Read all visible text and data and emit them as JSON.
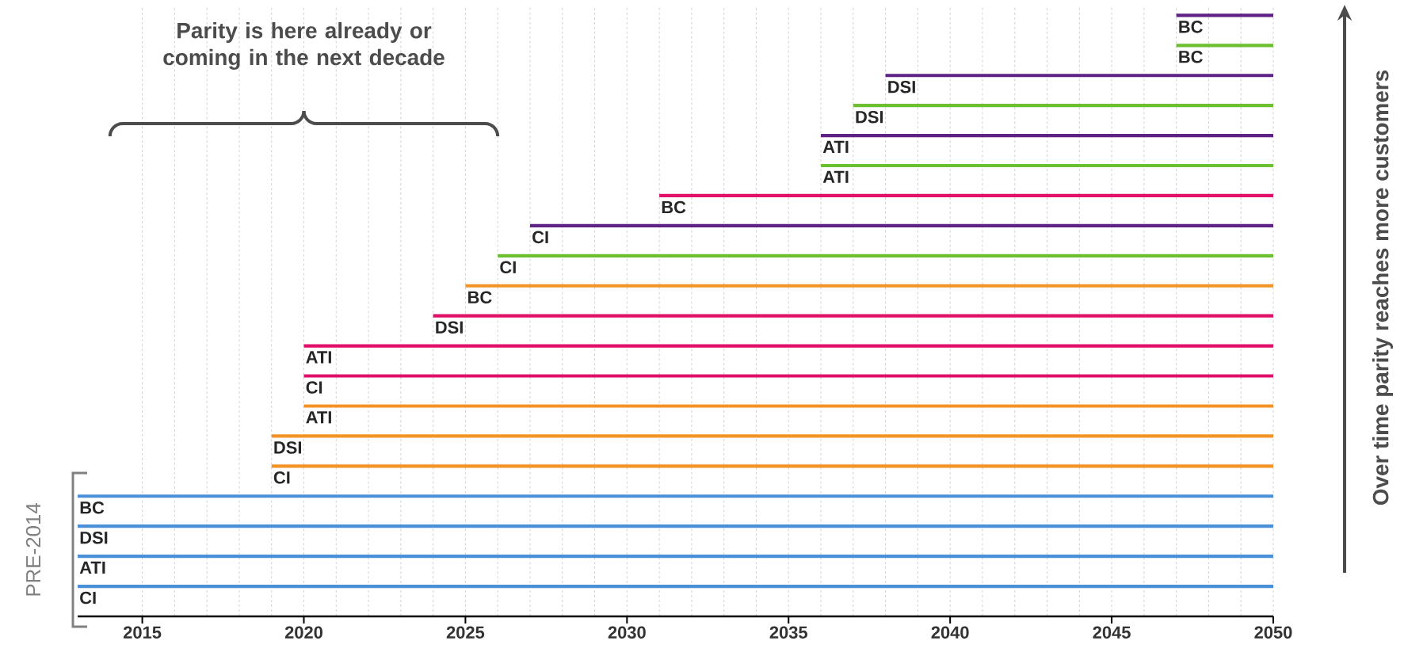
{
  "chart_data": {
    "type": "bar",
    "orientation": "horizontal",
    "categories": [
      "BC",
      "BC",
      "DSI",
      "DSI",
      "ATI",
      "ATI",
      "BC",
      "CI",
      "CI",
      "BC",
      "DSI",
      "ATI",
      "CI",
      "ATI",
      "DSI",
      "CI",
      "BC",
      "DSI",
      "ATI",
      "CI"
    ],
    "base": [
      2047,
      2047,
      2038,
      2037,
      2036,
      2036,
      2031,
      2027,
      2026,
      2025,
      2024,
      2020,
      2020,
      2020,
      2019,
      2019,
      2013,
      2013,
      2013,
      2013
    ],
    "values": [
      3,
      3,
      12,
      13,
      14,
      14,
      19,
      23,
      24,
      25,
      26,
      30,
      30,
      30,
      31,
      31,
      37,
      37,
      37,
      37
    ],
    "colors": [
      "#5e2287",
      "#6cbf2e",
      "#5e2287",
      "#6cbf2e",
      "#5e2287",
      "#6cbf2e",
      "#e0106a",
      "#5e2287",
      "#6cbf2e",
      "#f39325",
      "#e0106a",
      "#e0106a",
      "#e0106a",
      "#f39325",
      "#f39325",
      "#f39325",
      "#4a90d9",
      "#4a90d9",
      "#4a90d9",
      "#4a90d9"
    ],
    "xlim": [
      2013,
      2050
    ],
    "xticks": [
      2015,
      2020,
      2025,
      2030,
      2035,
      2040,
      2045,
      2050
    ],
    "grid": "x",
    "annotations": [
      "Parity is here already or coming in the next decade",
      "PRE-2014",
      "Over time parity reaches more customers"
    ]
  }
}
